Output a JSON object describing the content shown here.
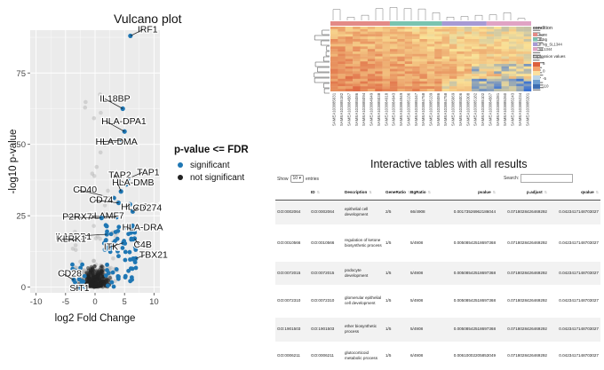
{
  "volcano": {
    "title": "Vulcano plot",
    "xlabel": "log2 Fold Change",
    "ylabel": "-log10 p-value",
    "x_ticks": [
      "-10",
      "-5",
      "0",
      "5",
      "10"
    ],
    "y_ticks": [
      "0",
      "25",
      "50",
      "75"
    ],
    "colors": {
      "significant": "#1f77b4",
      "not_significant": "#222222",
      "background_points": "#b0b0b0",
      "panel": "#ebebeb",
      "grid": "#ffffff"
    }
  },
  "legend": {
    "title": "p-value <= FDR",
    "items": [
      {
        "label": "significant",
        "color": "#1f77b4"
      },
      {
        "label": "not significant",
        "color": "#222222"
      }
    ]
  },
  "chart_data": {
    "type": "scatter",
    "title": "Vulcano plot",
    "xlabel": "log2 Fold Change",
    "ylabel": "-log10 p-value",
    "xlim": [
      -11,
      11
    ],
    "ylim": [
      -2,
      90
    ],
    "grid": true,
    "legend_position": "right",
    "series": [
      {
        "name": "significant",
        "color": "#1f77b4",
        "points": [
          {
            "x": 6.0,
            "y": 88,
            "label": "IRF1"
          },
          {
            "x": 4.7,
            "y": 62.5,
            "label": "IL18BP"
          },
          {
            "x": 5.0,
            "y": 54.5,
            "label": "HLA-DPA1"
          },
          {
            "x": 4.6,
            "y": 51.5,
            "label": "HLA-DMA"
          },
          {
            "x": 5.6,
            "y": 38,
            "label": "TAP1"
          },
          {
            "x": 5.3,
            "y": 36,
            "label": "TAP2"
          },
          {
            "x": 4.4,
            "y": 33.5,
            "label": "HLA-DMB"
          },
          {
            "x": 3.2,
            "y": 31.2,
            "label": "CD40"
          },
          {
            "x": 4.0,
            "y": 29.5,
            "label": "CD74"
          },
          {
            "x": 5.9,
            "y": 29,
            "label": "HLA-DOA"
          },
          {
            "x": 6.4,
            "y": 26.5,
            "label": "CD274"
          },
          {
            "x": 3.6,
            "y": 24.5,
            "label": "SLAMF7"
          },
          {
            "x": 1.1,
            "y": 24.2,
            "label": "P2RX7"
          },
          {
            "x": 6.1,
            "y": 20.5,
            "label": "HLA-DRA"
          },
          {
            "x": 2.0,
            "y": 18.5,
            "label": "IL12RB1"
          },
          {
            "x": 6.7,
            "y": 17,
            "label": "C4B"
          },
          {
            "x": 4.8,
            "y": 15.5,
            "label": "ITK"
          },
          {
            "x": -3.2,
            "y": 16.5,
            "label": "KLRK1"
          },
          {
            "x": 6.9,
            "y": 10,
            "label": "TBX21"
          },
          {
            "x": -3.6,
            "y": 2.5,
            "label": "CD28"
          },
          {
            "x": -2.8,
            "y": -0.2,
            "label": "SIT1"
          }
        ]
      },
      {
        "name": "not significant",
        "color": "#222222"
      }
    ]
  },
  "heatmap": {
    "legend_title": "condition",
    "legend_items": [
      {
        "label": "none",
        "color": "#e38a86"
      },
      {
        "label": "IFNg",
        "color": "#79c4b0"
      },
      {
        "label": "IFNg_SL1344",
        "color": "#a69ad4"
      },
      {
        "label": "SL1344",
        "color": "#e0a3c4"
      }
    ],
    "value_legend_title": "Expression values",
    "value_ticks": [
      "5",
      "0",
      "-5",
      "-10"
    ],
    "column_labels": [
      "SAMEA103885031",
      "SAMEA103885182",
      "SAMEA103884567",
      "SAMEA103885086",
      "SAMEA103885094",
      "SAMEA103884949",
      "SAMEA103885038",
      "SAMEA103884918",
      "SAMEA103884943",
      "SAMEA103884949",
      "SAMEA103885136",
      "SAMEA103885347",
      "SAMEA103884758",
      "SAMEA103885139",
      "SAMEA103885086",
      "SAMEA103884758",
      "SAMEA103885069",
      "SAMEA103885006",
      "SAMEA103885308",
      "SAMEA103885182",
      "SAMEA103885102",
      "SAMEA103884567",
      "SAMEA103885281",
      "SAMEA103885260",
      "SAMEA103885243",
      "SAMEA103885234",
      "SAMEA103885201"
    ]
  },
  "tables": {
    "title": "Interactive tables with all results",
    "show_label": "Show",
    "show_value": "10",
    "entries_label": "entries",
    "search_label": "Search:",
    "columns": [
      "",
      "ID",
      "Description",
      "GeneRatio",
      "BgRatio",
      "pvalue",
      "p.adjust",
      "qvalue"
    ],
    "rows": [
      [
        "GO:0002064",
        "GO:0002064",
        "epithelial cell development",
        "2/5",
        "66/4908",
        "0.00173526962186044",
        "0.0718028426469292",
        "0.0423417148703027"
      ],
      [
        "GO:0010566",
        "GO:0010566",
        "regulation of ketone biosynthetic process",
        "1/5",
        "5/4908",
        "0.00508542518697368",
        "0.0718028426469292",
        "0.0423417148703027"
      ],
      [
        "GO:0072015",
        "GO:0072015",
        "podocyte development",
        "1/5",
        "5/4908",
        "0.00508542518697368",
        "0.0718028426469292",
        "0.0423417148703027"
      ],
      [
        "GO:0072310",
        "GO:0072310",
        "glomerular epithelial cell development",
        "1/5",
        "5/4908",
        "0.00508542518697368",
        "0.0718028426469292",
        "0.0423417148703027"
      ],
      [
        "GO:1901503",
        "GO:1901503",
        "ether biosynthetic process",
        "1/5",
        "5/4908",
        "0.00508542518697368",
        "0.0718028426469292",
        "0.0423417148703027"
      ],
      [
        "GO:0006211",
        "GO:0006211",
        "glutocorticoid metabolic process",
        "1/5",
        "6/4908",
        "0.00610002205853049",
        "0.0718028426469292",
        "0.0423417148703027"
      ]
    ]
  }
}
